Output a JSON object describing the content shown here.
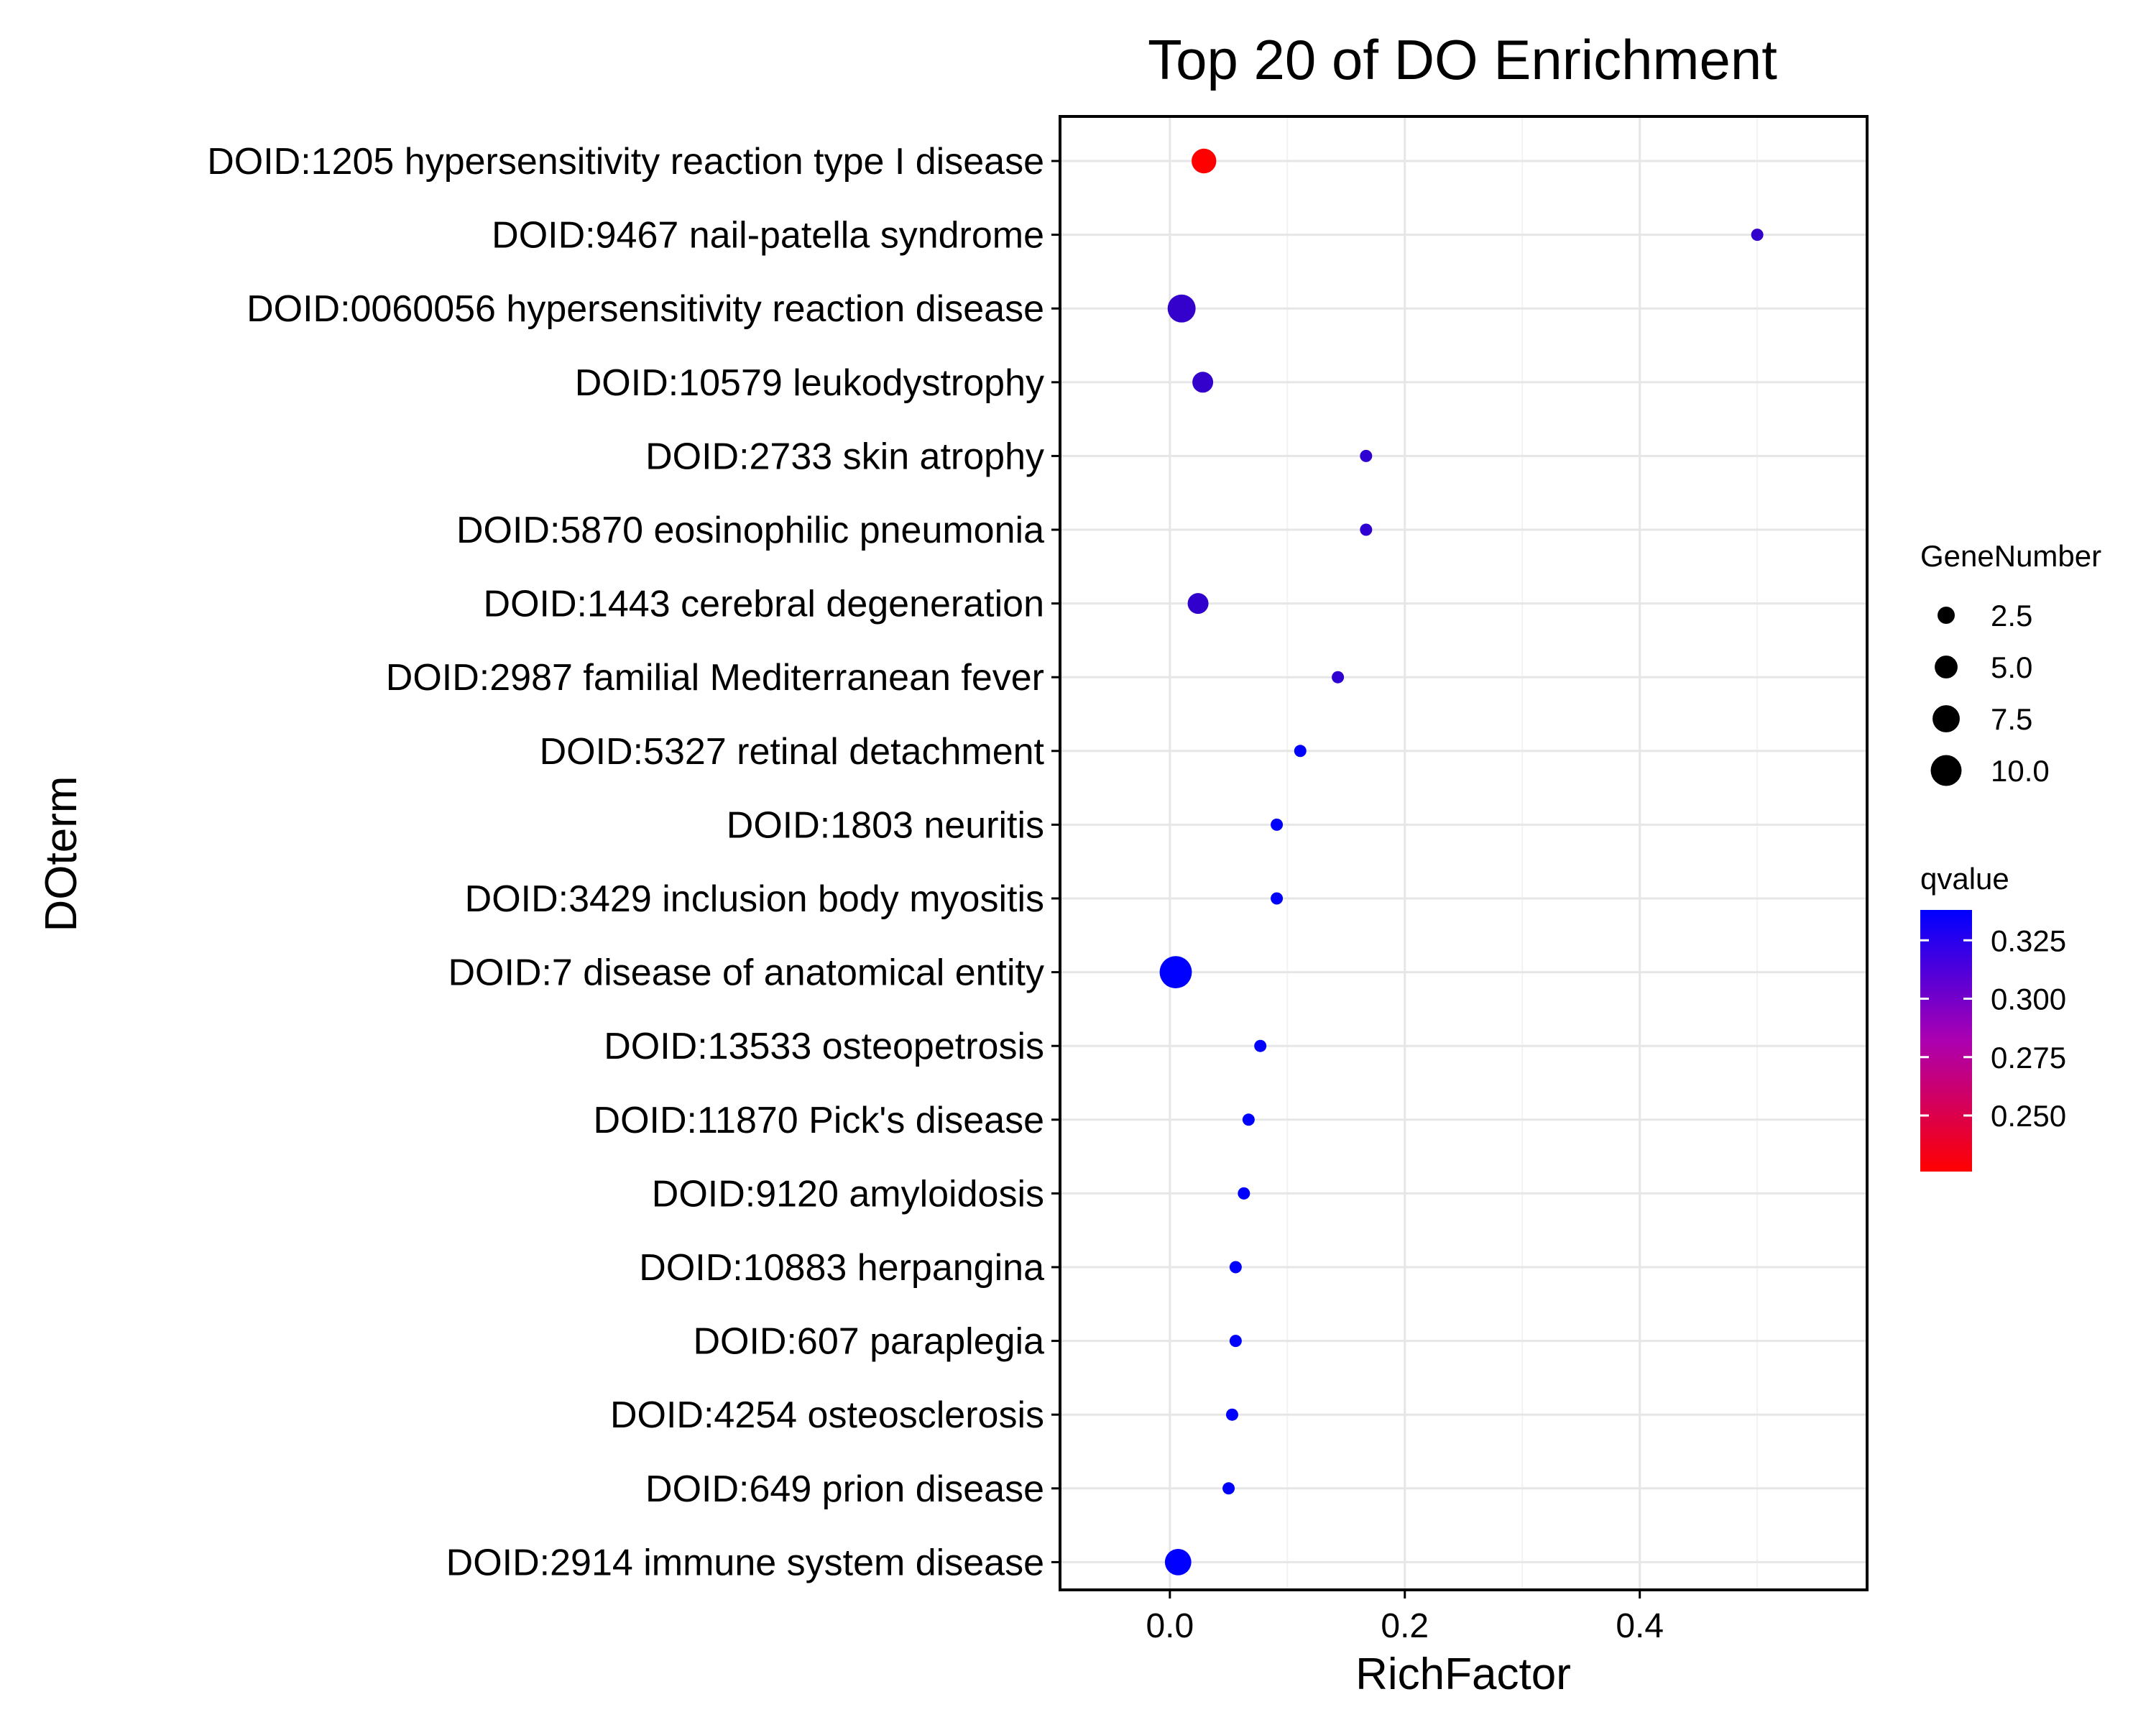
{
  "chart_data": {
    "type": "scatter",
    "title": "Top 20 of DO Enrichment",
    "xlabel": "RichFactor",
    "ylabel": "DOterm",
    "xlim": [
      -0.0935,
      0.5935
    ],
    "xticks": [
      "0.0",
      "0.2",
      "0.4"
    ],
    "xtick_values": [
      0.0,
      0.2,
      0.4
    ],
    "grid": true,
    "legend_position": "right",
    "points": [
      {
        "term": "DOID:1205 hypersensitivity reaction type I disease",
        "rich_factor": 0.029,
        "gene_number": 6,
        "qvalue": 0.226
      },
      {
        "term": "DOID:9467 nail-patella syndrome",
        "rich_factor": 0.5,
        "gene_number": 1,
        "qvalue": 0.316
      },
      {
        "term": "DOID:0060056 hypersensitivity reaction disease",
        "rich_factor": 0.01,
        "gene_number": 8,
        "qvalue": 0.315
      },
      {
        "term": "DOID:10579 leukodystrophy",
        "rich_factor": 0.028,
        "gene_number": 4,
        "qvalue": 0.315
      },
      {
        "term": "DOID:2733 skin atrophy",
        "rich_factor": 0.167,
        "gene_number": 1,
        "qvalue": 0.318
      },
      {
        "term": "DOID:5870 eosinophilic pneumonia",
        "rich_factor": 0.167,
        "gene_number": 1,
        "qvalue": 0.318
      },
      {
        "term": "DOID:1443 cerebral degeneration",
        "rich_factor": 0.024,
        "gene_number": 4,
        "qvalue": 0.316
      },
      {
        "term": "DOID:2987 familial Mediterranean fever",
        "rich_factor": 0.143,
        "gene_number": 1,
        "qvalue": 0.318
      },
      {
        "term": "DOID:5327 retinal detachment",
        "rich_factor": 0.111,
        "gene_number": 1,
        "qvalue": 0.338
      },
      {
        "term": "DOID:1803 neuritis",
        "rich_factor": 0.091,
        "gene_number": 1,
        "qvalue": 0.338
      },
      {
        "term": "DOID:3429 inclusion body myositis",
        "rich_factor": 0.091,
        "gene_number": 1,
        "qvalue": 0.338
      },
      {
        "term": "DOID:7 disease of anatomical entity",
        "rich_factor": 0.005,
        "gene_number": 11,
        "qvalue": 0.338
      },
      {
        "term": "DOID:13533 osteopetrosis",
        "rich_factor": 0.077,
        "gene_number": 1,
        "qvalue": 0.338
      },
      {
        "term": "DOID:11870 Pick's disease",
        "rich_factor": 0.067,
        "gene_number": 1,
        "qvalue": 0.338
      },
      {
        "term": "DOID:9120 amyloidosis",
        "rich_factor": 0.063,
        "gene_number": 1,
        "qvalue": 0.338
      },
      {
        "term": "DOID:10883 herpangina",
        "rich_factor": 0.056,
        "gene_number": 1,
        "qvalue": 0.338
      },
      {
        "term": "DOID:607 paraplegia",
        "rich_factor": 0.056,
        "gene_number": 1,
        "qvalue": 0.338
      },
      {
        "term": "DOID:4254 osteosclerosis",
        "rich_factor": 0.053,
        "gene_number": 1,
        "qvalue": 0.338
      },
      {
        "term": "DOID:649 prion disease",
        "rich_factor": 0.05,
        "gene_number": 1,
        "qvalue": 0.338
      },
      {
        "term": "DOID:2914 immune system disease",
        "rich_factor": 0.007,
        "gene_number": 7,
        "qvalue": 0.338
      }
    ],
    "size_legend": {
      "title": "GeneNumber",
      "labels": [
        "2.5",
        "5.0",
        "7.5",
        "10.0"
      ],
      "values": [
        2.5,
        5.0,
        7.5,
        10.0
      ]
    },
    "color_legend": {
      "title": "qvalue",
      "labels": [
        "0.325",
        "0.300",
        "0.275",
        "0.250"
      ],
      "values": [
        0.325,
        0.3,
        0.275,
        0.25
      ],
      "range": [
        0.226,
        0.338
      ],
      "low_color": "#FF0000",
      "high_color": "#0000FF"
    }
  }
}
